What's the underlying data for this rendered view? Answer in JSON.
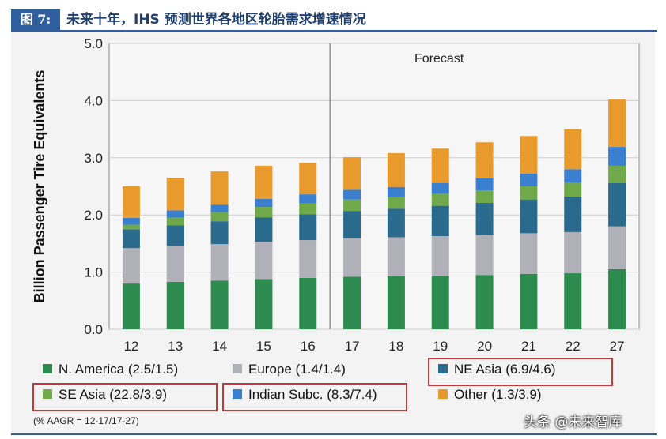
{
  "header": {
    "figure_label": "图 7:",
    "title": "未来十年，IHS 预测世界各地区轮胎需求增速情况"
  },
  "watermark": "头条 @未来智库",
  "colors": {
    "header_bg": "#2f5f9e",
    "highlight_box": "#c0393b"
  },
  "chart_data": {
    "type": "bar",
    "stacked": true,
    "ylabel": "Billion Passenger Tire Equivalents",
    "ylim": [
      0,
      5
    ],
    "yticks": [
      "0.0",
      "1.0",
      "2.0",
      "3.0",
      "4.0",
      "5.0"
    ],
    "categories": [
      "12",
      "13",
      "14",
      "15",
      "16",
      "17",
      "18",
      "19",
      "20",
      "21",
      "22",
      "27"
    ],
    "forecast_label": "Forecast",
    "forecast_divider_after": "16",
    "grid": true,
    "legend_position": "bottom",
    "note": "(% AAGR = 12-17/17-27)",
    "series": [
      {
        "name": "N. America (2.5/1.5)",
        "color": "#2e8b4f",
        "highlighted": false,
        "values": [
          0.8,
          0.83,
          0.85,
          0.88,
          0.9,
          0.92,
          0.93,
          0.94,
          0.95,
          0.97,
          0.98,
          1.05
        ]
      },
      {
        "name": "Europe (1.4/1.4)",
        "color": "#b0b0b8",
        "highlighted": false,
        "values": [
          0.62,
          0.63,
          0.64,
          0.65,
          0.66,
          0.67,
          0.68,
          0.69,
          0.7,
          0.71,
          0.72,
          0.75
        ]
      },
      {
        "name": "NE Asia (6.9/4.6)",
        "color": "#2a6a8c",
        "highlighted": true,
        "values": [
          0.33,
          0.36,
          0.4,
          0.43,
          0.45,
          0.48,
          0.5,
          0.53,
          0.56,
          0.59,
          0.62,
          0.76
        ]
      },
      {
        "name": "SE Asia (22.8/3.9)",
        "color": "#6fa94a",
        "highlighted": true,
        "values": [
          0.08,
          0.13,
          0.16,
          0.18,
          0.19,
          0.2,
          0.2,
          0.21,
          0.22,
          0.23,
          0.24,
          0.3
        ]
      },
      {
        "name": "Indian Subc. (8.3/7.4)",
        "color": "#3a7fd0",
        "highlighted": true,
        "values": [
          0.12,
          0.13,
          0.13,
          0.14,
          0.16,
          0.17,
          0.18,
          0.19,
          0.21,
          0.22,
          0.24,
          0.33
        ]
      },
      {
        "name": "Other (1.3/3.9)",
        "color": "#e89a2c",
        "highlighted": false,
        "values": [
          0.55,
          0.57,
          0.58,
          0.58,
          0.55,
          0.57,
          0.59,
          0.6,
          0.63,
          0.66,
          0.7,
          0.83
        ]
      }
    ]
  }
}
